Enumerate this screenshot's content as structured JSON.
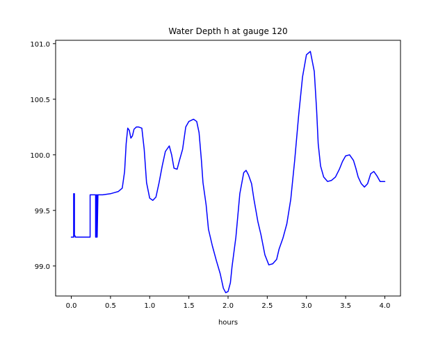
{
  "chart_data": {
    "type": "line",
    "title": "Water Depth h at gauge 120",
    "xlabel": "hours",
    "ylabel": "",
    "xlim": [
      -0.2,
      4.2
    ],
    "ylim": [
      98.73,
      101.03
    ],
    "xticks": [
      0.0,
      0.5,
      1.0,
      1.5,
      2.0,
      2.5,
      3.0,
      3.5,
      4.0
    ],
    "xtick_labels": [
      "0.0",
      "0.5",
      "1.0",
      "1.5",
      "2.0",
      "2.5",
      "3.0",
      "3.5",
      "4.0"
    ],
    "yticks": [
      99.0,
      99.5,
      100.0,
      100.5,
      101.0
    ],
    "ytick_labels": [
      "99.0",
      "99.5",
      "100.0",
      "100.5",
      "101.0"
    ],
    "grid": false,
    "legend": "none",
    "series": [
      {
        "color": "#0000ff",
        "x": [
          0.0,
          0.03,
          0.03,
          0.04,
          0.04,
          0.05,
          0.05,
          0.1,
          0.2,
          0.24,
          0.24,
          0.27,
          0.31,
          0.31,
          0.32,
          0.32,
          0.33,
          0.33,
          0.34,
          0.4,
          0.5,
          0.55,
          0.6,
          0.65,
          0.68,
          0.7,
          0.72,
          0.74,
          0.76,
          0.78,
          0.8,
          0.83,
          0.86,
          0.9,
          0.93,
          0.96,
          1.0,
          1.04,
          1.08,
          1.12,
          1.16,
          1.2,
          1.25,
          1.28,
          1.31,
          1.35,
          1.38,
          1.42,
          1.46,
          1.5,
          1.53,
          1.56,
          1.6,
          1.63,
          1.66,
          1.68,
          1.72,
          1.75,
          1.8,
          1.85,
          1.9,
          1.94,
          1.97,
          2.0,
          2.03,
          2.05,
          2.1,
          2.15,
          2.2,
          2.23,
          2.26,
          2.3,
          2.33,
          2.38,
          2.42,
          2.47,
          2.52,
          2.57,
          2.62,
          2.65,
          2.7,
          2.75,
          2.8,
          2.85,
          2.9,
          2.95,
          3.0,
          3.05,
          3.1,
          3.13,
          3.15,
          3.18,
          3.22,
          3.27,
          3.32,
          3.37,
          3.42,
          3.46,
          3.5,
          3.55,
          3.6,
          3.63,
          3.66,
          3.7,
          3.74,
          3.78,
          3.82,
          3.86,
          3.9,
          3.94,
          3.97,
          4.0
        ],
        "y": [
          99.26,
          99.26,
          99.65,
          99.65,
          99.27,
          99.27,
          99.26,
          99.26,
          99.26,
          99.26,
          99.64,
          99.64,
          99.64,
          99.26,
          99.26,
          99.64,
          99.64,
          99.26,
          99.64,
          99.64,
          99.65,
          99.66,
          99.67,
          99.7,
          99.85,
          100.1,
          100.24,
          100.22,
          100.15,
          100.17,
          100.23,
          100.25,
          100.25,
          100.24,
          100.05,
          99.75,
          99.61,
          99.59,
          99.62,
          99.75,
          99.9,
          100.03,
          100.08,
          100.0,
          99.88,
          99.87,
          99.95,
          100.05,
          100.25,
          100.3,
          100.31,
          100.32,
          100.3,
          100.2,
          99.95,
          99.75,
          99.55,
          99.33,
          99.18,
          99.05,
          98.93,
          98.8,
          98.76,
          98.77,
          98.85,
          98.99,
          99.26,
          99.65,
          99.84,
          99.86,
          99.82,
          99.74,
          99.6,
          99.4,
          99.28,
          99.1,
          99.01,
          99.02,
          99.06,
          99.15,
          99.25,
          99.38,
          99.6,
          99.95,
          100.35,
          100.7,
          100.9,
          100.93,
          100.75,
          100.4,
          100.1,
          99.9,
          99.8,
          99.76,
          99.77,
          99.8,
          99.87,
          99.94,
          99.99,
          100.0,
          99.95,
          99.88,
          99.8,
          99.74,
          99.71,
          99.74,
          99.83,
          99.85,
          99.81,
          99.76,
          99.76,
          99.76
        ]
      }
    ]
  }
}
